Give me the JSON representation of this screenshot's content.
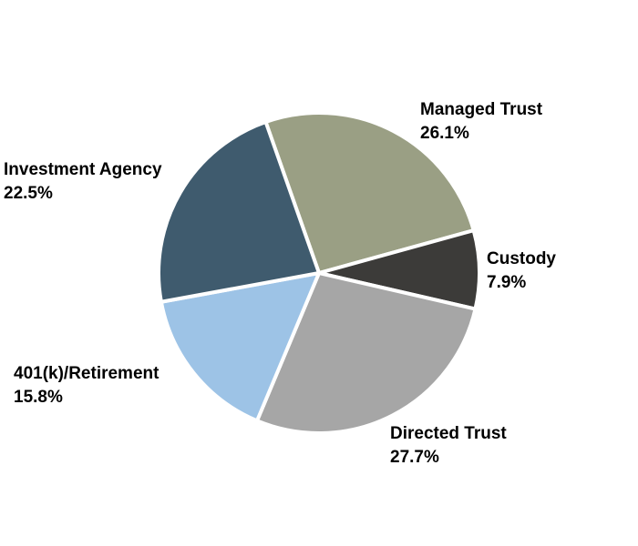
{
  "chart_data": {
    "type": "pie",
    "title": "",
    "start_angle_deg": -19.4,
    "direction": "clockwise",
    "slices": [
      {
        "label": "Managed Trust",
        "value": 26.1,
        "value_label": "26.1%",
        "color": "#9a9f84"
      },
      {
        "label": "Custody",
        "value": 7.9,
        "value_label": "7.9%",
        "color": "#3c3b39"
      },
      {
        "label": "Directed Trust",
        "value": 27.7,
        "value_label": "27.7%",
        "color": "#a6a6a6"
      },
      {
        "label": "401(k)/Retirement",
        "value": 15.8,
        "value_label": "15.8%",
        "color": "#9dc3e6"
      },
      {
        "label": "Investment Agency",
        "value": 22.5,
        "value_label": "22.5%",
        "color": "#3f5b6e"
      }
    ]
  }
}
